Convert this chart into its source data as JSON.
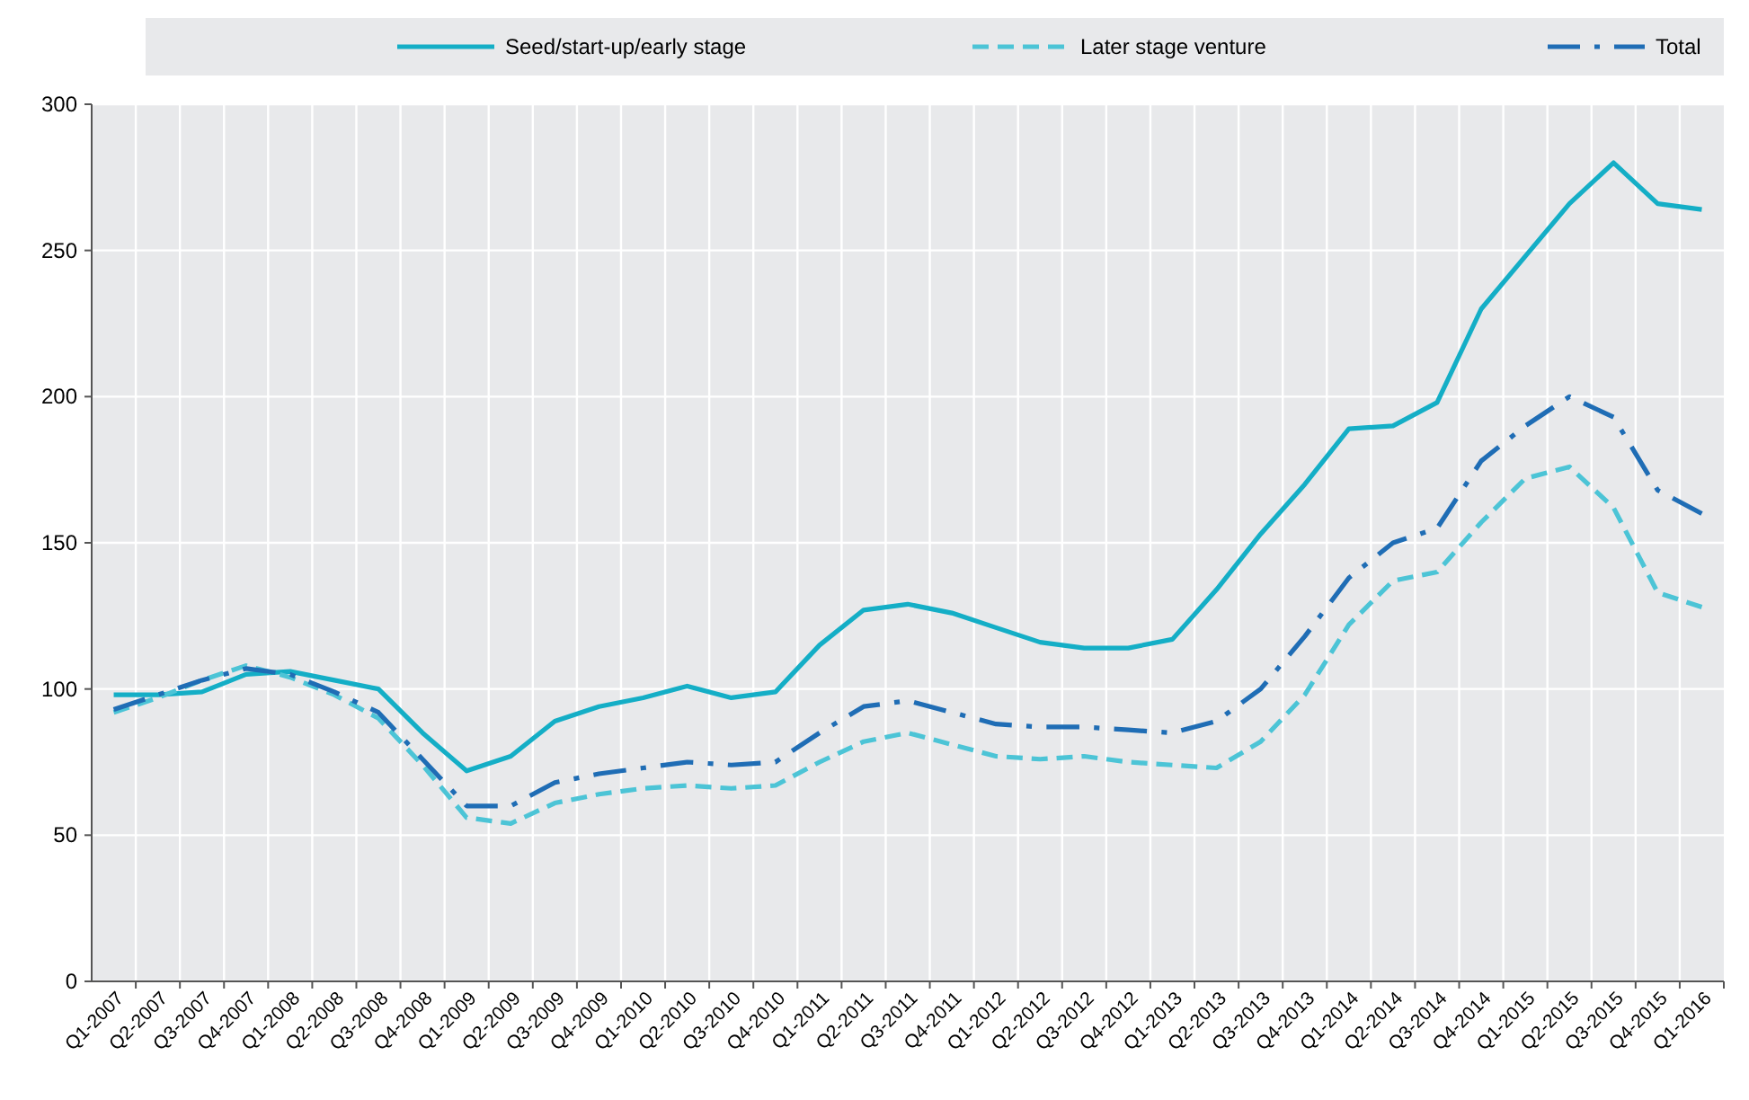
{
  "chart_data": {
    "type": "line",
    "categories": [
      "Q1-2007",
      "Q2-2007",
      "Q3-2007",
      "Q4-2007",
      "Q1-2008",
      "Q2-2008",
      "Q3-2008",
      "Q4-2008",
      "Q1-2009",
      "Q2-2009",
      "Q3-2009",
      "Q4-2009",
      "Q1-2010",
      "Q2-2010",
      "Q3-2010",
      "Q4-2010",
      "Q1-2011",
      "Q2-2011",
      "Q3-2011",
      "Q4-2011",
      "Q1-2012",
      "Q2-2012",
      "Q3-2012",
      "Q4-2012",
      "Q1-2013",
      "Q2-2013",
      "Q3-2013",
      "Q4-2013",
      "Q1-2014",
      "Q2-2014",
      "Q3-2014",
      "Q4-2014",
      "Q1-2015",
      "Q2-2015",
      "Q3-2015",
      "Q4-2015",
      "Q1-2016"
    ],
    "series": [
      {
        "name": "Seed/start-up/early stage",
        "color": "#14aec6",
        "line_style": "solid",
        "values": [
          98,
          98,
          99,
          105,
          106,
          103,
          100,
          85,
          72,
          77,
          89,
          94,
          97,
          101,
          97,
          99,
          115,
          127,
          129,
          126,
          121,
          116,
          114,
          114,
          117,
          134,
          153,
          170,
          189,
          190,
          198,
          230,
          248,
          266,
          280,
          266,
          264
        ]
      },
      {
        "name": "Later stage venture",
        "color": "#4cc4d6",
        "line_style": "dashed",
        "values": [
          92,
          97,
          103,
          108,
          104,
          98,
          90,
          74,
          56,
          54,
          61,
          64,
          66,
          67,
          66,
          67,
          75,
          82,
          85,
          81,
          77,
          76,
          77,
          75,
          74,
          73,
          82,
          98,
          122,
          137,
          140,
          157,
          172,
          176,
          162,
          133,
          128
        ]
      },
      {
        "name": "Total",
        "color": "#1f6db5",
        "line_style": "dashdot",
        "values": [
          93,
          98,
          103,
          107,
          105,
          99,
          92,
          76,
          60,
          60,
          68,
          71,
          73,
          75,
          74,
          75,
          85,
          94,
          96,
          92,
          88,
          87,
          87,
          86,
          85,
          89,
          100,
          118,
          138,
          150,
          155,
          178,
          190,
          200,
          193,
          168,
          160
        ]
      }
    ],
    "ylim": [
      0,
      300
    ],
    "yticks": [
      0,
      50,
      100,
      150,
      200,
      250,
      300
    ],
    "grid": true,
    "legend": "top",
    "marker": "none"
  }
}
